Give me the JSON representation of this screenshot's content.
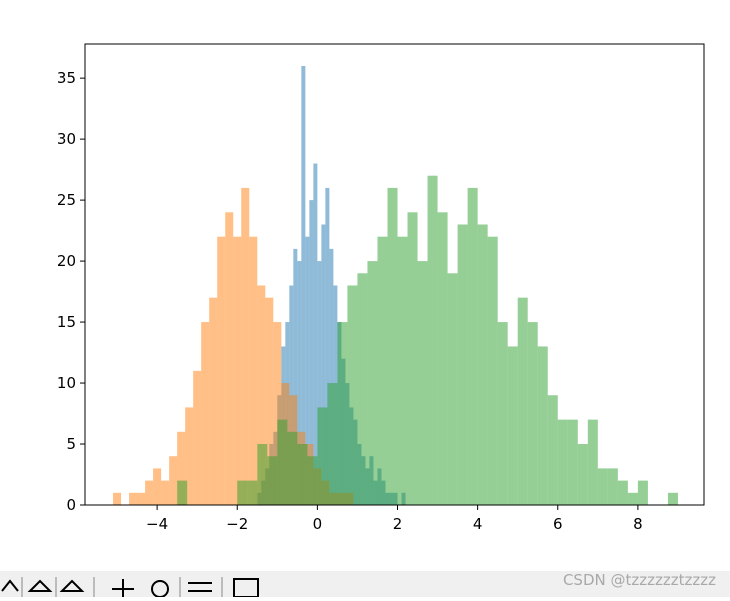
{
  "chart_data": {
    "type": "histogram",
    "xlim": [
      -5.8,
      9.65
    ],
    "ylim": [
      0,
      37.8
    ],
    "xticks": [
      {
        "value": -4,
        "label": "−4"
      },
      {
        "value": -2,
        "label": "−2"
      },
      0,
      2,
      4,
      6,
      8
    ],
    "yticks": [
      0,
      5,
      10,
      15,
      20,
      25,
      30,
      35
    ],
    "series": [
      {
        "color": "#1f77b4",
        "alpha": 0.5,
        "bins": [
          -1.5,
          -1.4,
          -1.3,
          -1.2,
          -1.1,
          -1.0,
          -0.9,
          -0.8,
          -0.7,
          -0.6,
          -0.5,
          -0.4,
          -0.3,
          -0.2,
          -0.1,
          0.0,
          0.1,
          0.2,
          0.3,
          0.4,
          0.5,
          0.6,
          0.7,
          0.8,
          0.9,
          1.0,
          1.1,
          1.2,
          1.3,
          1.4,
          1.5,
          1.6,
          1.7,
          1.8,
          1.9,
          2.0,
          2.1,
          2.2
        ],
        "values": [
          1,
          2,
          3,
          5,
          6,
          9,
          13,
          15,
          18,
          21,
          20,
          36,
          22,
          25,
          28,
          20,
          23,
          26,
          21,
          18,
          15,
          12,
          10,
          8,
          7,
          5,
          4,
          3,
          4,
          2,
          3,
          2,
          1,
          1,
          1,
          0,
          1
        ]
      },
      {
        "color": "#ff7f0e",
        "alpha": 0.5,
        "bins": [
          -5.1,
          -4.9,
          -4.7,
          -4.5,
          -4.3,
          -4.1,
          -3.9,
          -3.7,
          -3.5,
          -3.3,
          -3.1,
          -2.9,
          -2.7,
          -2.5,
          -2.3,
          -2.1,
          -1.9,
          -1.7,
          -1.5,
          -1.3,
          -1.1,
          -0.9,
          -0.7,
          -0.5,
          -0.3,
          -0.1,
          0.1,
          0.3,
          0.5,
          0.7,
          0.9
        ],
        "values": [
          1,
          0,
          1,
          1,
          2,
          3,
          2,
          4,
          6,
          8,
          11,
          15,
          17,
          22,
          24,
          22,
          26,
          22,
          18,
          17,
          15,
          10,
          9,
          6,
          5,
          3,
          2,
          1,
          1,
          1
        ]
      },
      {
        "color": "#2ca02c",
        "alpha": 0.5,
        "bins": [
          -3.5,
          -3.25,
          -3.0,
          -2.75,
          -2.5,
          -2.25,
          -2.0,
          -1.75,
          -1.5,
          -1.25,
          -1.0,
          -0.75,
          -0.5,
          -0.25,
          0.0,
          0.25,
          0.5,
          0.75,
          1.0,
          1.25,
          1.5,
          1.75,
          2.0,
          2.25,
          2.5,
          2.75,
          3.0,
          3.25,
          3.5,
          3.75,
          4.0,
          4.25,
          4.5,
          4.75,
          5.0,
          5.25,
          5.5,
          5.75,
          6.0,
          6.25,
          6.5,
          6.75,
          7.0,
          7.25,
          7.5,
          7.75,
          8.0,
          8.25,
          8.5,
          8.75,
          9.0
        ],
        "values": [
          2,
          0,
          0,
          0,
          0,
          0,
          2,
          2,
          5,
          4,
          7,
          6,
          5,
          4,
          8,
          10,
          15,
          18,
          19,
          20,
          22,
          26,
          22,
          24,
          20,
          27,
          24,
          19,
          23,
          26,
          23,
          22,
          15,
          13,
          17,
          15,
          13,
          9,
          7,
          7,
          5,
          7,
          3,
          3,
          2,
          1,
          2,
          0,
          0,
          1
        ]
      }
    ]
  },
  "watermark": "CSDN @tzzzzzztzzzz"
}
